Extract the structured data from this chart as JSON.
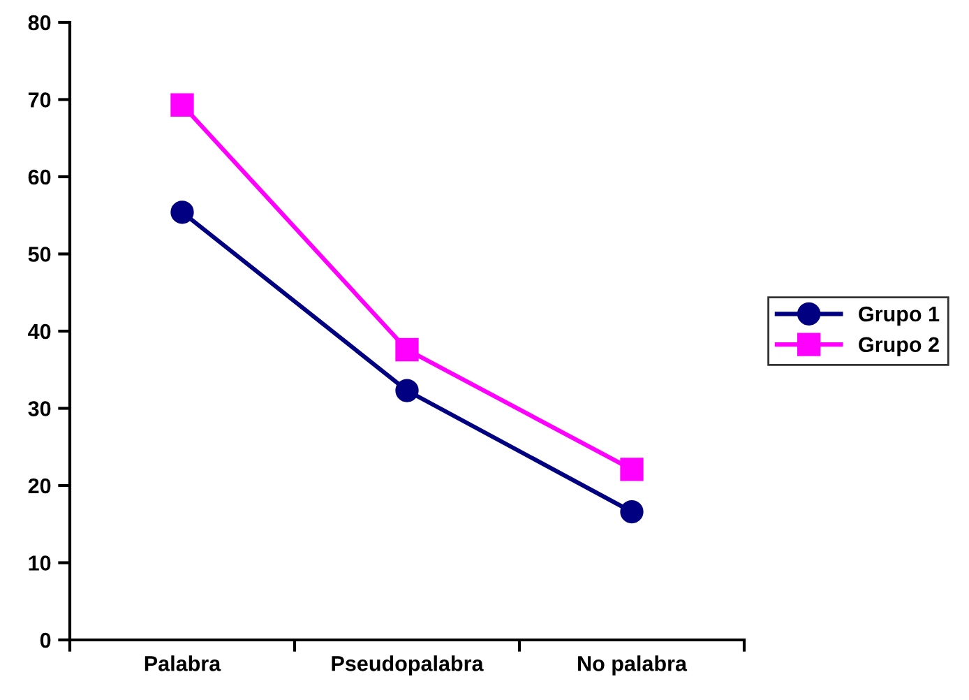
{
  "chart_data": {
    "type": "line",
    "categories": [
      "Palabra",
      "Pseudopalabra",
      "No palabra"
    ],
    "series": [
      {
        "name": "Grupo 1",
        "color": "#000080",
        "marker": "circle",
        "values": [
          55.4,
          32.3,
          16.6
        ]
      },
      {
        "name": "Grupo 2",
        "color": "#ff00ff",
        "marker": "square",
        "values": [
          69.3,
          37.6,
          22.1
        ]
      }
    ],
    "ylim": [
      0,
      80
    ],
    "yticks": [
      0,
      10,
      20,
      30,
      40,
      50,
      60,
      70,
      80
    ],
    "grid": false,
    "legend": "right",
    "line_style": "solid"
  }
}
